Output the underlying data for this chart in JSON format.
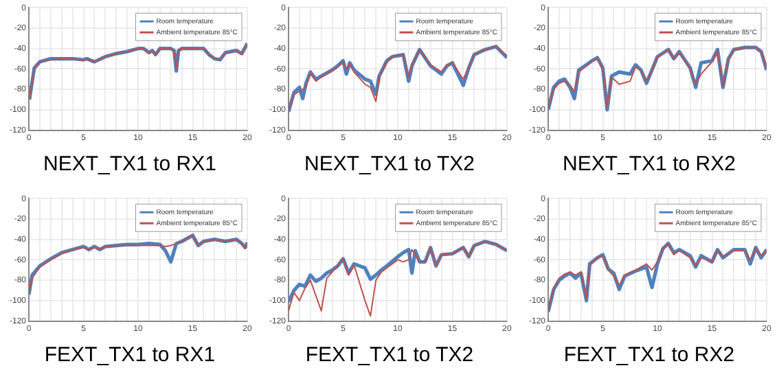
{
  "chart_data": [
    {
      "type": "line",
      "title": "NEXT_TX1 to RX1",
      "legend": "top right",
      "grid": true,
      "xlim": [
        0,
        20
      ],
      "ylim": [
        -120,
        0
      ],
      "yticks": [
        -120,
        -100,
        -80,
        -60,
        -40,
        -20,
        0
      ],
      "xticks": [
        0,
        {
          "value": 1,
          "label": null
        },
        {
          "value": 2,
          "label": null
        },
        {
          "value": 3,
          "label": null
        },
        {
          "value": 4,
          "label": null
        },
        5,
        {
          "value": 6,
          "label": null
        },
        {
          "value": 7,
          "label": null
        },
        {
          "value": 8,
          "label": null
        },
        {
          "value": 9,
          "label": null
        },
        10,
        {
          "value": 11,
          "label": null
        },
        {
          "value": 12,
          "label": null
        },
        {
          "value": 13,
          "label": null
        },
        {
          "value": 14,
          "label": null
        },
        15,
        {
          "value": 16,
          "label": null
        },
        {
          "value": 17,
          "label": null
        },
        {
          "value": 18,
          "label": null
        },
        {
          "value": 19,
          "label": null
        },
        20
      ],
      "x": [
        0.05,
        0.5,
        1,
        2,
        3,
        4,
        5,
        5.3,
        6,
        7,
        8,
        9,
        10,
        10.5,
        11,
        11.3,
        11.6,
        12,
        13,
        13.3,
        13.5,
        13.7,
        14,
        16,
        16.5,
        17,
        17.5,
        18,
        19,
        19.5,
        20
      ],
      "series": [
        {
          "name": "Room temperature",
          "color": "#4f81bd",
          "values": [
            -90,
            -59,
            -53,
            -50,
            -50,
            -50,
            -51,
            -50,
            -53,
            -48,
            -45,
            -43,
            -40,
            -40,
            -44,
            -42,
            -46,
            -40,
            -40,
            -42,
            -62,
            -42,
            -40,
            -40,
            -46,
            -50,
            -51,
            -44,
            -42,
            -45,
            -35
          ]
        },
        {
          "name": "Ambient temperature 85°C",
          "color": "#c0504d",
          "values": [
            -89,
            -60,
            -53,
            -51,
            -50,
            -50,
            -52,
            -50,
            -53,
            -48,
            -45,
            -43,
            -40,
            -40,
            -45,
            -42,
            -46,
            -40,
            -40,
            -42,
            -60,
            -42,
            -40,
            -40,
            -46,
            -50,
            -51,
            -45,
            -42,
            -46,
            -36
          ]
        }
      ]
    },
    {
      "type": "line",
      "title": "NEXT_TX1 to TX2",
      "legend": "top right",
      "grid": true,
      "xlim": [
        0,
        20
      ],
      "ylim": [
        -120,
        0
      ],
      "yticks": [
        -120,
        -100,
        -80,
        -60,
        -40,
        -20,
        0
      ],
      "xticks": [
        0,
        {
          "value": 1,
          "label": null
        },
        {
          "value": 2,
          "label": null
        },
        {
          "value": 3,
          "label": null
        },
        {
          "value": 4,
          "label": null
        },
        5,
        {
          "value": 6,
          "label": null
        },
        {
          "value": 7,
          "label": null
        },
        {
          "value": 8,
          "label": null
        },
        {
          "value": 9,
          "label": null
        },
        10,
        {
          "value": 11,
          "label": null
        },
        {
          "value": 12,
          "label": null
        },
        {
          "value": 13,
          "label": null
        },
        {
          "value": 14,
          "label": null
        },
        15,
        {
          "value": 16,
          "label": null
        },
        {
          "value": 17,
          "label": null
        },
        {
          "value": 18,
          "label": null
        },
        {
          "value": 19,
          "label": null
        },
        20
      ],
      "x": [
        0,
        0.5,
        1,
        1.3,
        1.6,
        2,
        2.5,
        3,
        4,
        4.5,
        5,
        5.3,
        5.6,
        6,
        7,
        7.5,
        8,
        8.3,
        9,
        9.5,
        10,
        10.5,
        11,
        11.3,
        12,
        13,
        14,
        14.5,
        15,
        16,
        16.5,
        17,
        18,
        19,
        20
      ],
      "series": [
        {
          "name": "Room temperature",
          "color": "#4f81bd",
          "values": [
            -102,
            -83,
            -78,
            -89,
            -74,
            -63,
            -70,
            -67,
            -61,
            -57,
            -52,
            -65,
            -54,
            -61,
            -70,
            -72,
            -85,
            -67,
            -52,
            -48,
            -47,
            -46,
            -72,
            -57,
            -41,
            -57,
            -65,
            -57,
            -54,
            -76,
            -59,
            -46,
            -41,
            -38,
            -49
          ]
        },
        {
          "name": "Ambient temperature 85°C",
          "color": "#c0504d",
          "values": [
            -100,
            -85,
            -82,
            -80,
            -78,
            -64,
            -72,
            -68,
            -62,
            -58,
            -53,
            -60,
            -55,
            -63,
            -75,
            -78,
            -92,
            -68,
            -53,
            -48,
            -47,
            -46,
            -68,
            -56,
            -41,
            -56,
            -63,
            -56,
            -54,
            -70,
            -58,
            -46,
            -41,
            -38,
            -47
          ]
        }
      ]
    },
    {
      "type": "line",
      "title": "NEXT_TX1 to RX2",
      "legend": "top right",
      "grid": true,
      "xlim": [
        0,
        20
      ],
      "ylim": [
        -120,
        0
      ],
      "yticks": [
        -120,
        -100,
        -80,
        -60,
        -40,
        -20,
        0
      ],
      "xticks": [
        0,
        {
          "value": 1,
          "label": null
        },
        {
          "value": 2,
          "label": null
        },
        {
          "value": 3,
          "label": null
        },
        {
          "value": 4,
          "label": null
        },
        5,
        {
          "value": 6,
          "label": null
        },
        {
          "value": 7,
          "label": null
        },
        {
          "value": 8,
          "label": null
        },
        {
          "value": 9,
          "label": null
        },
        10,
        {
          "value": 11,
          "label": null
        },
        {
          "value": 12,
          "label": null
        },
        {
          "value": 13,
          "label": null
        },
        {
          "value": 14,
          "label": null
        },
        15,
        {
          "value": 16,
          "label": null
        },
        {
          "value": 17,
          "label": null
        },
        {
          "value": 18,
          "label": null
        },
        {
          "value": 19,
          "label": null
        },
        20
      ],
      "x": [
        0,
        0.5,
        1,
        1.5,
        2,
        2.4,
        2.8,
        3.5,
        4,
        4.5,
        5,
        5.4,
        5.8,
        6.5,
        7.5,
        8,
        8.5,
        9,
        9.5,
        10,
        11,
        11.5,
        12,
        13,
        13.5,
        14,
        15,
        15.5,
        16,
        16.5,
        17,
        18,
        19,
        19.5,
        20
      ],
      "series": [
        {
          "name": "Room temperature",
          "color": "#4f81bd",
          "values": [
            -100,
            -78,
            -72,
            -70,
            -78,
            -89,
            -61,
            -56,
            -52,
            -49,
            -59,
            -100,
            -67,
            -63,
            -65,
            -56,
            -61,
            -74,
            -61,
            -48,
            -41,
            -50,
            -43,
            -59,
            -78,
            -54,
            -52,
            -41,
            -78,
            -50,
            -41,
            -39,
            -39,
            -43,
            -61
          ]
        },
        {
          "name": "Ambient temperature 85°C",
          "color": "#c0504d",
          "values": [
            -98,
            -80,
            -74,
            -72,
            -76,
            -82,
            -63,
            -57,
            -53,
            -50,
            -60,
            -98,
            -68,
            -75,
            -72,
            -58,
            -62,
            -72,
            -62,
            -48,
            -41,
            -50,
            -44,
            -60,
            -75,
            -65,
            -53,
            -42,
            -77,
            -51,
            -41,
            -39,
            -39,
            -43,
            -58
          ]
        }
      ]
    },
    {
      "type": "line",
      "title": "FEXT_TX1 to RX1",
      "legend": "top right",
      "grid": true,
      "xlim": [
        0,
        20
      ],
      "ylim": [
        -120,
        0
      ],
      "yticks": [
        -120,
        -100,
        -80,
        -60,
        -40,
        -20,
        0
      ],
      "xticks": [
        0,
        {
          "value": 1,
          "label": null
        },
        {
          "value": 2,
          "label": null
        },
        {
          "value": 3,
          "label": null
        },
        {
          "value": 4,
          "label": null
        },
        5,
        {
          "value": 6,
          "label": null
        },
        {
          "value": 7,
          "label": null
        },
        {
          "value": 8,
          "label": null
        },
        {
          "value": 9,
          "label": null
        },
        10,
        {
          "value": 11,
          "label": null
        },
        {
          "value": 12,
          "label": null
        },
        {
          "value": 13,
          "label": null
        },
        {
          "value": 14,
          "label": null
        },
        15,
        {
          "value": 16,
          "label": null
        },
        {
          "value": 17,
          "label": null
        },
        {
          "value": 18,
          "label": null
        },
        {
          "value": 19,
          "label": null
        },
        20
      ],
      "x": [
        0,
        0.3,
        1,
        2,
        3,
        4,
        5,
        5.5,
        6,
        6.5,
        7,
        8,
        9,
        10,
        11,
        12,
        12.5,
        13,
        13.5,
        14,
        15,
        15.5,
        16,
        17,
        18,
        19,
        19.5,
        19.8,
        20
      ],
      "series": [
        {
          "name": "Room temperature",
          "color": "#4f81bd",
          "values": [
            -94,
            -75,
            -66,
            -59,
            -53,
            -50,
            -47,
            -50,
            -47,
            -50,
            -47,
            -46,
            -45,
            -45,
            -44,
            -45,
            -51,
            -62,
            -44,
            -42,
            -36,
            -46,
            -42,
            -40,
            -42,
            -40,
            -44,
            -48,
            -43
          ]
        },
        {
          "name": "Ambient temperature 85°C",
          "color": "#c0504d",
          "values": [
            -92,
            -78,
            -67,
            -60,
            -54,
            -50,
            -48,
            -50,
            -48,
            -50,
            -47,
            -46,
            -46,
            -46,
            -46,
            -46,
            -47,
            -46,
            -44,
            -42,
            -36,
            -46,
            -42,
            -40,
            -42,
            -40,
            -44,
            -49,
            -44
          ]
        }
      ]
    },
    {
      "type": "line",
      "title": "FEXT_TX1 to TX2",
      "legend": "top right",
      "grid": true,
      "xlim": [
        0,
        20
      ],
      "ylim": [
        -120,
        0
      ],
      "yticks": [
        -120,
        -100,
        -80,
        -60,
        -40,
        -20,
        0
      ],
      "xticks": [
        0,
        {
          "value": 1,
          "label": null
        },
        {
          "value": 2,
          "label": null
        },
        {
          "value": 3,
          "label": null
        },
        {
          "value": 4,
          "label": null
        },
        5,
        {
          "value": 6,
          "label": null
        },
        {
          "value": 7,
          "label": null
        },
        {
          "value": 8,
          "label": null
        },
        {
          "value": 9,
          "label": null
        },
        10,
        {
          "value": 11,
          "label": null
        },
        {
          "value": 12,
          "label": null
        },
        {
          "value": 13,
          "label": null
        },
        {
          "value": 14,
          "label": null
        },
        15,
        {
          "value": 16,
          "label": null
        },
        {
          "value": 17,
          "label": null
        },
        {
          "value": 18,
          "label": null
        },
        {
          "value": 19,
          "label": null
        },
        20
      ],
      "x": [
        0,
        0.5,
        1,
        1.5,
        2,
        2.5,
        3,
        3.5,
        4,
        4.5,
        5,
        5.5,
        6,
        7,
        7.5,
        8,
        8.5,
        9,
        10,
        10.5,
        11,
        11.3,
        11.6,
        12,
        12.5,
        13,
        13.5,
        14,
        15,
        16,
        16.5,
        17,
        18,
        19,
        20
      ],
      "series": [
        {
          "name": "Room temperature",
          "color": "#4f81bd",
          "values": [
            -101,
            -90,
            -84,
            -86,
            -75,
            -81,
            -78,
            -73,
            -70,
            -66,
            -59,
            -73,
            -64,
            -68,
            -79,
            -75,
            -70,
            -66,
            -57,
            -53,
            -50,
            -73,
            -51,
            -62,
            -62,
            -48,
            -66,
            -55,
            -54,
            -48,
            -57,
            -46,
            -42,
            -45,
            -51
          ]
        },
        {
          "name": "Ambient temperature 85°C",
          "color": "#c0504d",
          "values": [
            -110,
            -92,
            -100,
            -88,
            -80,
            -95,
            -110,
            -78,
            -72,
            -66,
            -59,
            -75,
            -65,
            -100,
            -115,
            -80,
            -72,
            -68,
            -60,
            -62,
            -60,
            -50,
            -55,
            -62,
            -62,
            -48,
            -66,
            -55,
            -54,
            -48,
            -57,
            -46,
            -42,
            -45,
            -51
          ]
        }
      ]
    },
    {
      "type": "line",
      "title": "FEXT_TX1 to RX2",
      "legend": "top right",
      "grid": true,
      "xlim": [
        0,
        20
      ],
      "ylim": [
        -120,
        0
      ],
      "yticks": [
        -120,
        -100,
        -80,
        -60,
        -40,
        -20,
        0
      ],
      "xticks": [
        0,
        {
          "value": 1,
          "label": null
        },
        {
          "value": 2,
          "label": null
        },
        {
          "value": 3,
          "label": null
        },
        {
          "value": 4,
          "label": null
        },
        5,
        {
          "value": 6,
          "label": null
        },
        {
          "value": 7,
          "label": null
        },
        {
          "value": 8,
          "label": null
        },
        {
          "value": 9,
          "label": null
        },
        10,
        {
          "value": 11,
          "label": null
        },
        {
          "value": 12,
          "label": null
        },
        {
          "value": 13,
          "label": null
        },
        {
          "value": 14,
          "label": null
        },
        15,
        {
          "value": 16,
          "label": null
        },
        {
          "value": 17,
          "label": null
        },
        {
          "value": 18,
          "label": null
        },
        {
          "value": 19,
          "label": null
        },
        20
      ],
      "x": [
        0,
        0.5,
        1,
        1.5,
        2,
        2.5,
        3,
        3.5,
        3.8,
        4.5,
        5,
        5.5,
        6,
        6.5,
        7,
        8,
        9,
        9.5,
        10,
        10.5,
        11,
        11.5,
        12,
        13,
        13.5,
        14,
        15,
        15.5,
        16,
        17,
        18,
        18.5,
        19,
        19.5,
        20
      ],
      "series": [
        {
          "name": "Room temperature",
          "color": "#4f81bd",
          "values": [
            -111,
            -89,
            -80,
            -76,
            -73,
            -78,
            -73,
            -100,
            -64,
            -58,
            -55,
            -69,
            -73,
            -89,
            -76,
            -71,
            -67,
            -87,
            -64,
            -49,
            -44,
            -53,
            -50,
            -56,
            -67,
            -56,
            -62,
            -50,
            -58,
            -50,
            -50,
            -64,
            -48,
            -58,
            -50
          ]
        },
        {
          "name": "Ambient temperature 85°C",
          "color": "#c0504d",
          "values": [
            -108,
            -88,
            -78,
            -74,
            -72,
            -75,
            -72,
            -98,
            -65,
            -58,
            -56,
            -70,
            -76,
            -85,
            -75,
            -70,
            -64,
            -70,
            -62,
            -49,
            -44,
            -55,
            -51,
            -58,
            -66,
            -58,
            -62,
            -51,
            -57,
            -51,
            -51,
            -60,
            -49,
            -56,
            -51
          ]
        }
      ]
    }
  ]
}
